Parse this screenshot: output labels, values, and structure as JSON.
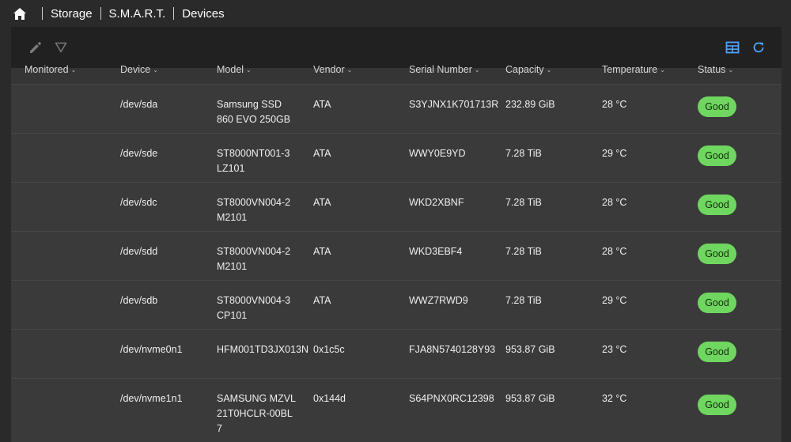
{
  "breadcrumb": {
    "items": [
      "Storage",
      "S.M.A.R.T.",
      "Devices"
    ]
  },
  "colors": {
    "status_good": "#6fd65f",
    "accent": "#4da3ff"
  },
  "toolbar": {
    "icons": [
      "pencil-icon",
      "filter-icon",
      "table-columns-icon",
      "refresh-icon"
    ]
  },
  "table": {
    "columns": [
      "Monitored",
      "Device",
      "Model",
      "Vendor",
      "Serial Number",
      "Capacity",
      "Temperature",
      "Status"
    ],
    "rows": [
      {
        "monitored": "",
        "device": "/dev/sda",
        "model": "Samsung SSD 860 EVO 250GB",
        "vendor": "ATA",
        "serial": "S3YJNX1K701713R",
        "capacity": "232.89 GiB",
        "temperature": "28 °C",
        "status": "Good"
      },
      {
        "monitored": "",
        "device": "/dev/sde",
        "model": "ST8000NT001-3LZ101",
        "vendor": "ATA",
        "serial": "WWY0E9YD",
        "capacity": "7.28 TiB",
        "temperature": "29 °C",
        "status": "Good"
      },
      {
        "monitored": "",
        "device": "/dev/sdc",
        "model": "ST8000VN004-2M2101",
        "vendor": "ATA",
        "serial": "WKD2XBNF",
        "capacity": "7.28 TiB",
        "temperature": "28 °C",
        "status": "Good"
      },
      {
        "monitored": "",
        "device": "/dev/sdd",
        "model": "ST8000VN004-2M2101",
        "vendor": "ATA",
        "serial": "WKD3EBF4",
        "capacity": "7.28 TiB",
        "temperature": "28 °C",
        "status": "Good"
      },
      {
        "monitored": "",
        "device": "/dev/sdb",
        "model": "ST8000VN004-3CP101",
        "vendor": "ATA",
        "serial": "WWZ7RWD9",
        "capacity": "7.28 TiB",
        "temperature": "29 °C",
        "status": "Good"
      },
      {
        "monitored": "",
        "device": "/dev/nvme0n1",
        "model": "HFM001TD3JX013N",
        "vendor": "0x1c5c",
        "serial": "FJA8N5740128Y93",
        "capacity": "953.87 GiB",
        "temperature": "23 °C",
        "status": "Good"
      },
      {
        "monitored": "",
        "device": "/dev/nvme1n1",
        "model": "SAMSUNG MZVL21T0HCLR-00BL7",
        "vendor": "0x144d",
        "serial": "S64PNX0RC12398",
        "capacity": "953.87 GiB",
        "temperature": "32 °C",
        "status": "Good"
      }
    ]
  }
}
